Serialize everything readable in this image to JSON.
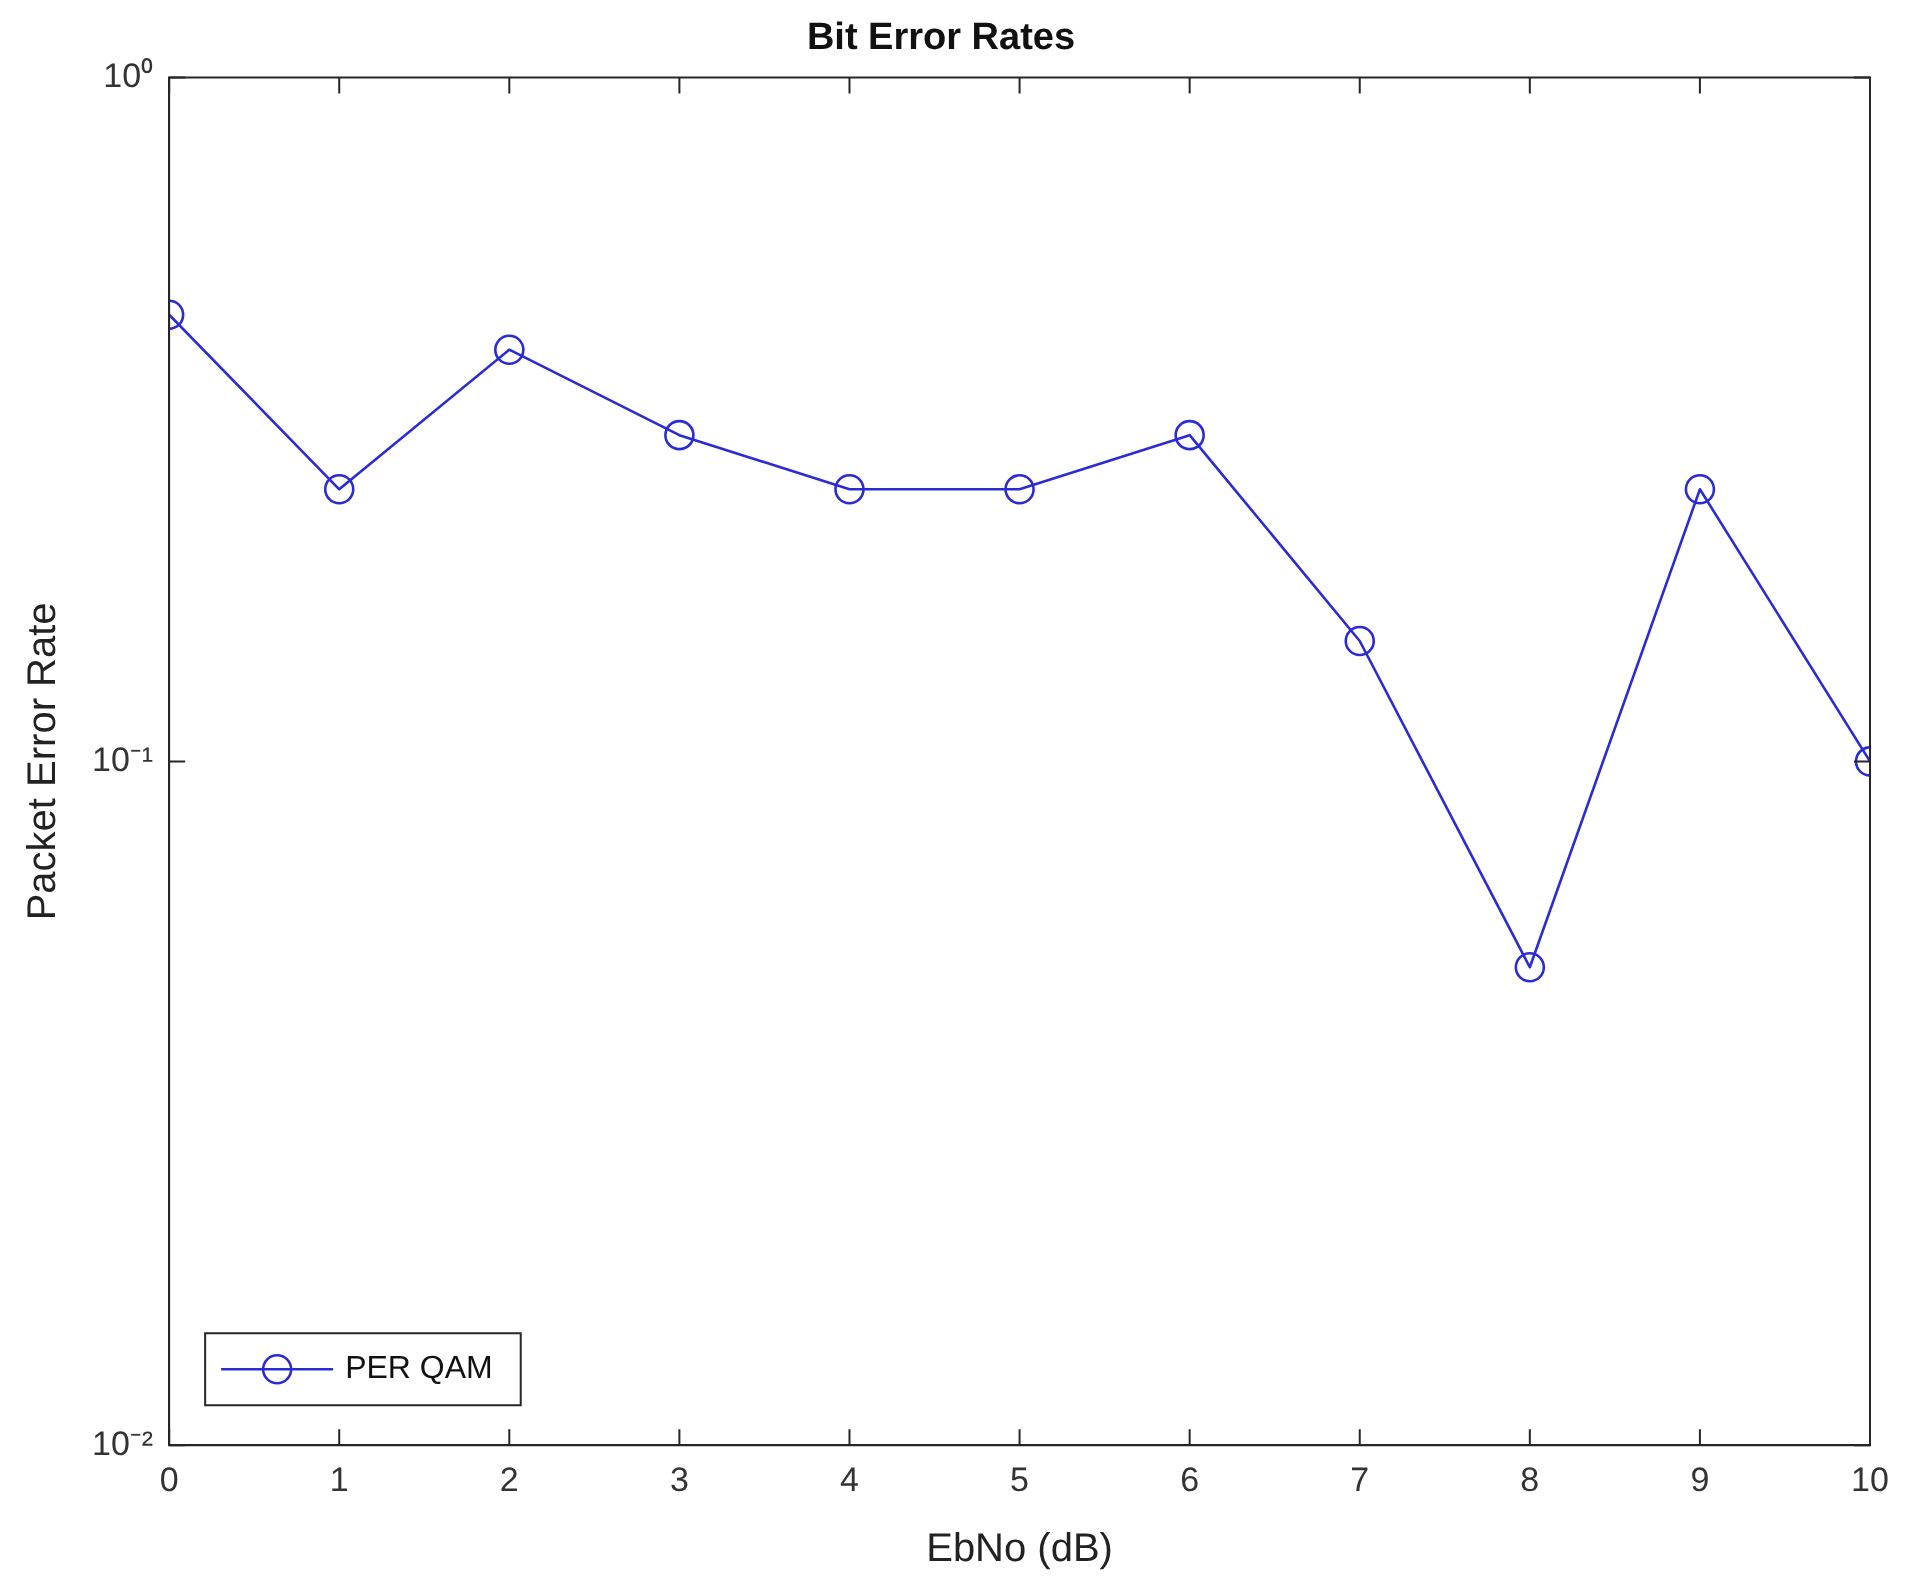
{
  "chart_data": {
    "type": "line",
    "title": "Bit Error Rates",
    "xlabel": "EbNo (dB)",
    "ylabel": "Packet Error Rate",
    "x": [
      0,
      1,
      2,
      3,
      4,
      5,
      6,
      7,
      8,
      9,
      10
    ],
    "series": [
      {
        "name": "PER QAM",
        "color": "#2b2bd6",
        "values": [
          0.45,
          0.25,
          0.4,
          0.3,
          0.25,
          0.25,
          0.3,
          0.15,
          0.05,
          0.25,
          0.1
        ]
      }
    ],
    "xlim": [
      0,
      10
    ],
    "xticks": [
      0,
      1,
      2,
      3,
      4,
      5,
      6,
      7,
      8,
      9,
      10
    ],
    "ylim": [
      0.01,
      1
    ],
    "yticks": [
      {
        "value": 0.01,
        "label": "10⁻²"
      },
      {
        "value": 0.1,
        "label": "10⁻¹"
      },
      {
        "value": 1,
        "label": "10⁰"
      }
    ],
    "log": "y",
    "grid": false,
    "legend": "bottom left",
    "marker": "circle",
    "line_style": "solid"
  }
}
